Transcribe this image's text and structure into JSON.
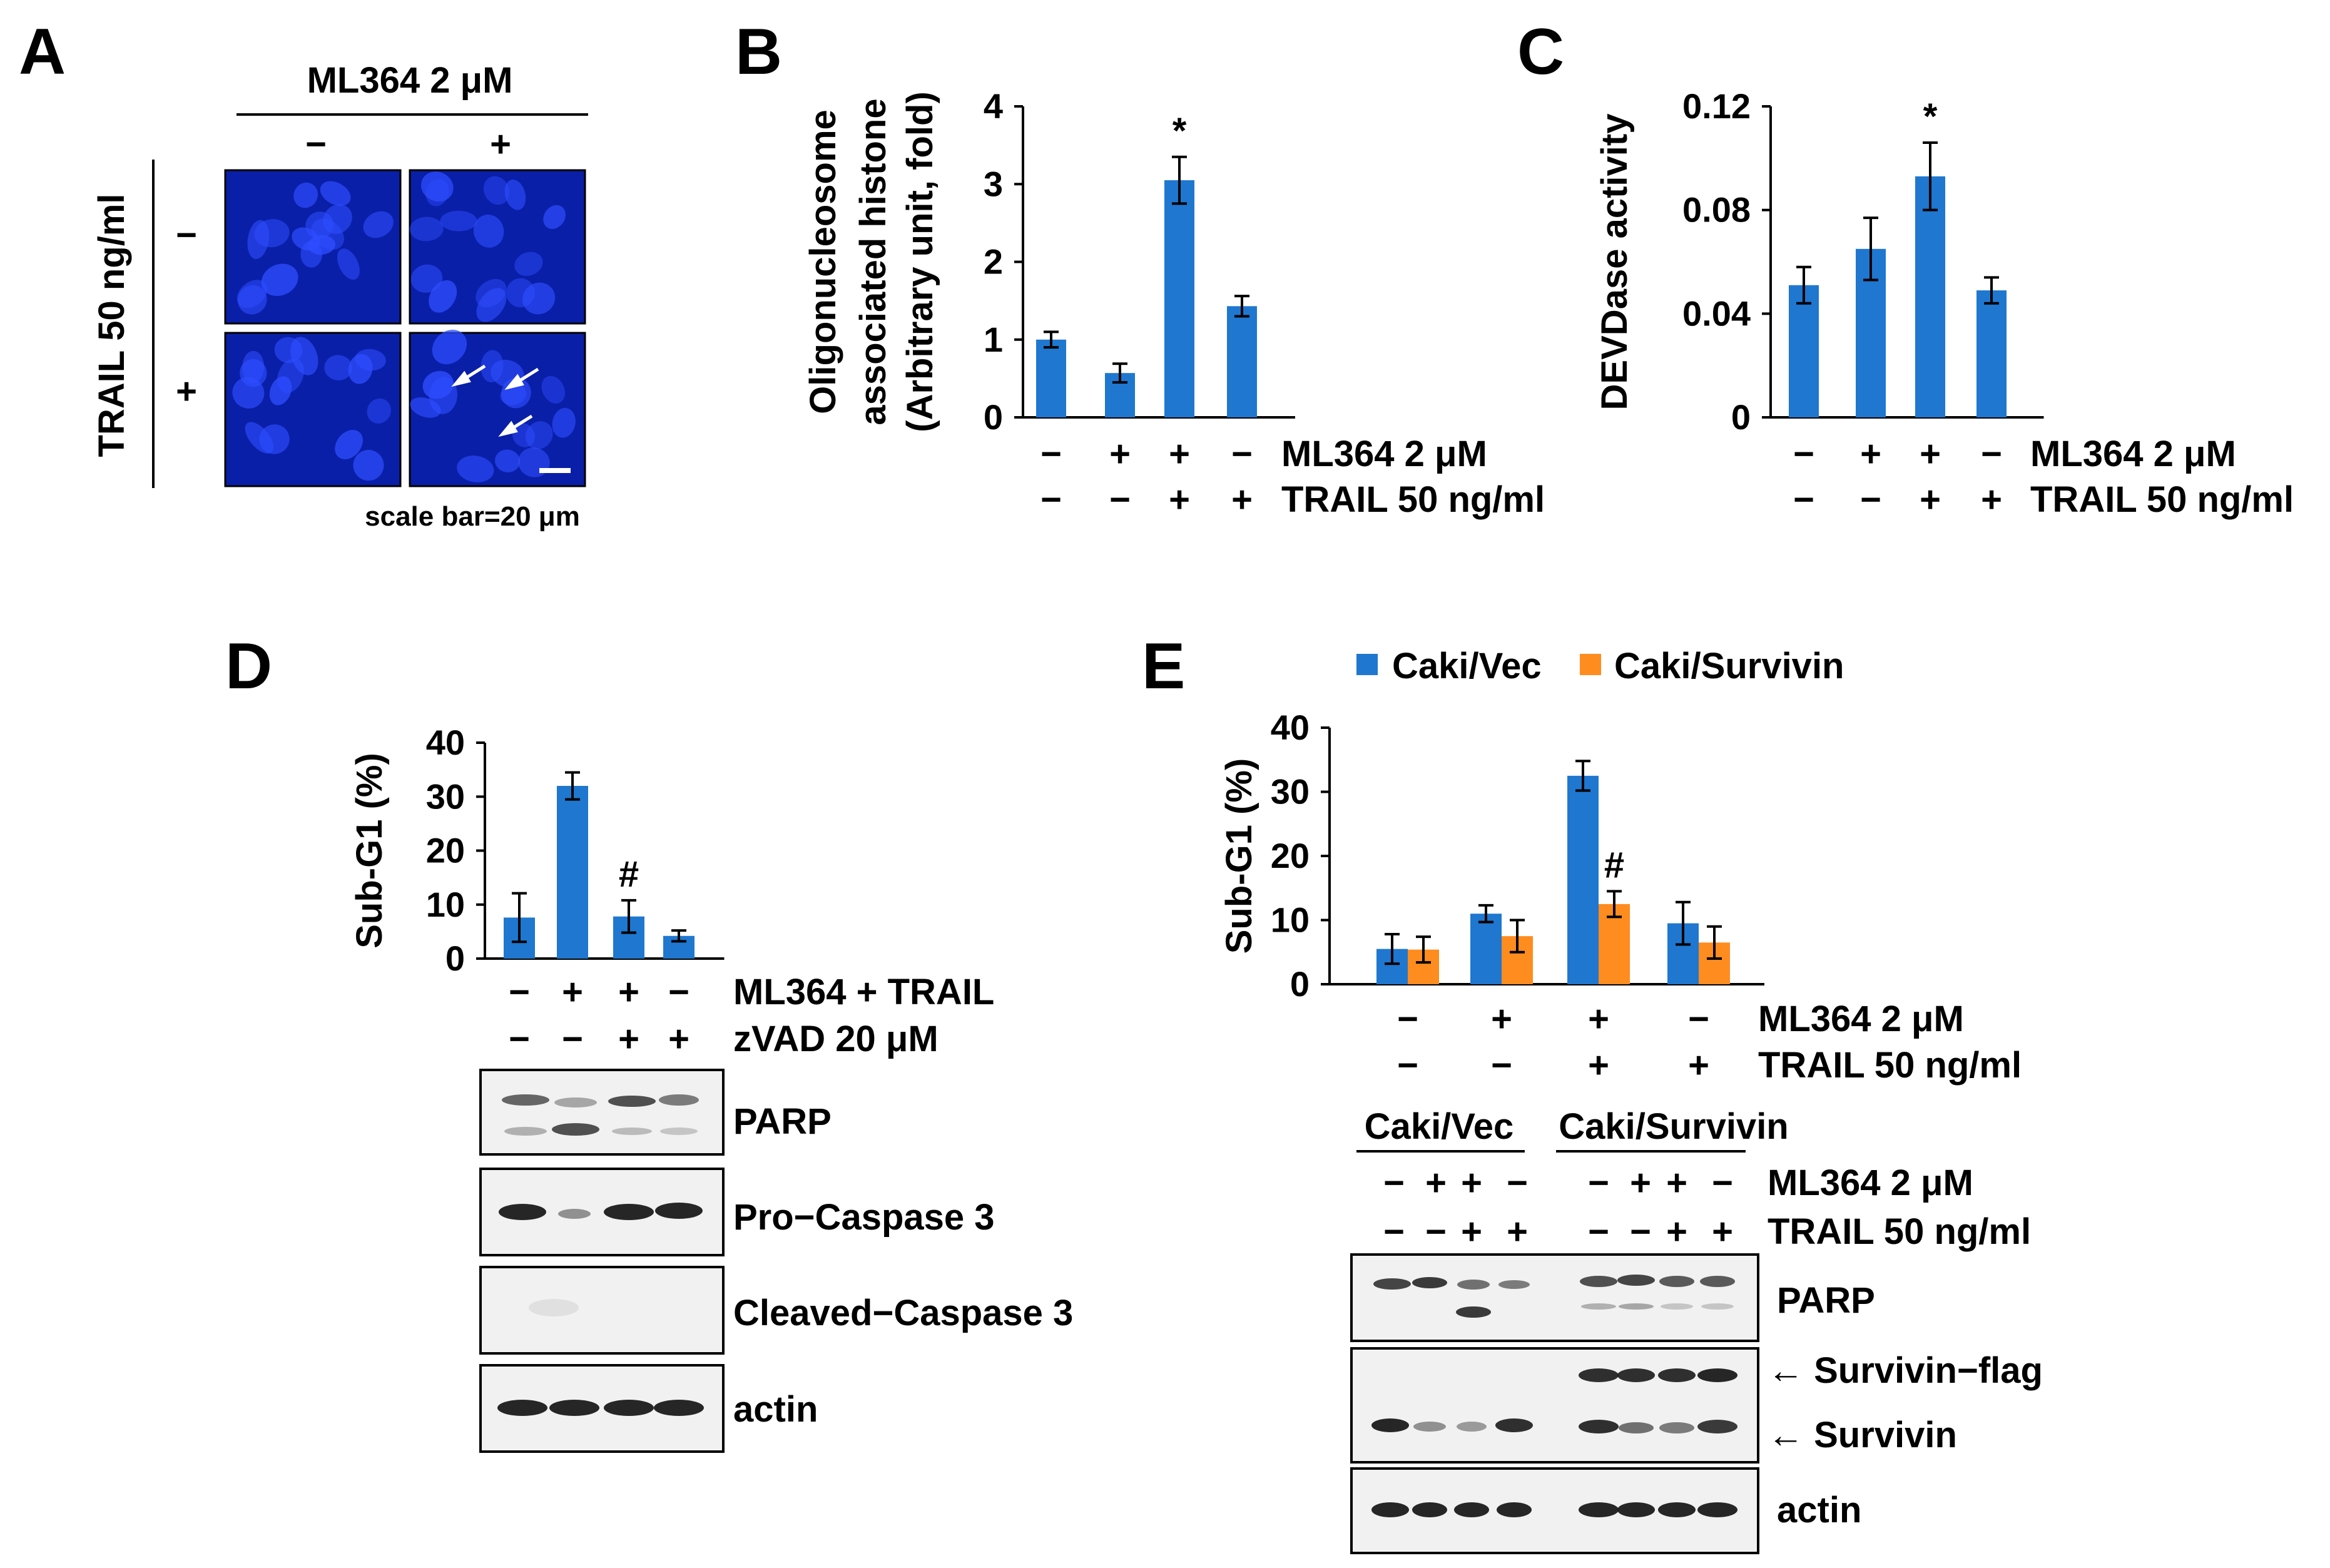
{
  "colors": {
    "bar_blue": "#1f77d0",
    "bar_orange": "#ff8c1f",
    "cell_bg": "#0a1fa8",
    "nucleus": "#2e4dff",
    "blot_bg": "#f1f1f1",
    "band": "#1a1a1a"
  },
  "panels": {
    "A": {
      "letter": "A",
      "col_title": "ML364 2 μM",
      "col_signs": [
        "−",
        "+"
      ],
      "row_title": "TRAIL  50 ng/ml",
      "row_signs": [
        "−",
        "+"
      ],
      "scale_label": "scale  bar=20  μm"
    },
    "B": {
      "letter": "B"
    },
    "C": {
      "letter": "C"
    },
    "D": {
      "letter": "D",
      "blot_labels": [
        "PARP",
        "Pro−Caspase 3",
        "Cleaved−Caspase 3",
        "actin"
      ]
    },
    "E": {
      "letter": "E",
      "group_labels": [
        "Caki/Vec",
        "Caki/Survivin"
      ],
      "blot_treatments": [
        {
          "label": "ML364 2 μM",
          "signs": [
            "−",
            "+",
            "+",
            "−",
            "−",
            "+",
            "+",
            "−"
          ]
        },
        {
          "label": "TRAIL 50 ng/ml",
          "signs": [
            "−",
            "−",
            "+",
            "+",
            "−",
            "−",
            "+",
            "+"
          ]
        }
      ],
      "blot_labels": [
        "PARP",
        "← Survivin−flag",
        "← Survivin",
        "actin"
      ]
    }
  },
  "chart_data": [
    {
      "id": "B",
      "type": "bar",
      "ylabel": [
        "Oligonucleosome",
        "associated histone",
        "(Arbitrary unit, fold)"
      ],
      "ylim": [
        0,
        4
      ],
      "yticks": [
        "0",
        "1",
        "2",
        "3",
        "4"
      ],
      "series": [
        {
          "name": "",
          "color": "#1f77d0",
          "values": [
            1.0,
            0.57,
            3.05,
            1.43
          ],
          "errors": [
            0.1,
            0.12,
            0.3,
            0.13
          ]
        }
      ],
      "annotations": [
        {
          "index": 2,
          "series": 0,
          "text": "*"
        }
      ],
      "treatments": [
        {
          "label": "ML364 2 μM",
          "signs": [
            "−",
            "+",
            "+",
            "−"
          ]
        },
        {
          "label": "TRAIL 50 ng/ml",
          "signs": [
            "−",
            "−",
            "+",
            "+"
          ]
        }
      ]
    },
    {
      "id": "C",
      "type": "bar",
      "ylabel": [
        "DEVDase activity"
      ],
      "ylim": [
        0,
        0.12
      ],
      "yticks": [
        "0",
        "0.04",
        "0.08",
        "0.12"
      ],
      "series": [
        {
          "name": "",
          "color": "#1f77d0",
          "values": [
            0.051,
            0.065,
            0.093,
            0.049
          ],
          "errors": [
            0.007,
            0.012,
            0.013,
            0.005
          ]
        }
      ],
      "annotations": [
        {
          "index": 2,
          "series": 0,
          "text": "*"
        }
      ],
      "treatments": [
        {
          "label": "ML364 2 μM",
          "signs": [
            "−",
            "+",
            "+",
            "−"
          ]
        },
        {
          "label": "TRAIL 50 ng/ml",
          "signs": [
            "−",
            "−",
            "+",
            "+"
          ]
        }
      ]
    },
    {
      "id": "D",
      "type": "bar",
      "ylabel": [
        "Sub-G1 (%)"
      ],
      "ylim": [
        0,
        40
      ],
      "yticks": [
        "0",
        "10",
        "20",
        "30",
        "40"
      ],
      "series": [
        {
          "name": "",
          "color": "#1f77d0",
          "values": [
            7.6,
            32.0,
            7.8,
            4.2
          ],
          "errors": [
            4.5,
            2.5,
            3.0,
            1.0
          ]
        }
      ],
      "annotations": [
        {
          "index": 2,
          "series": 0,
          "text": "#"
        }
      ],
      "treatments": [
        {
          "label": "ML364 + TRAIL",
          "signs": [
            "−",
            "+",
            "+",
            "−"
          ]
        },
        {
          "label": "zVAD 20 μM",
          "signs": [
            "−",
            "−",
            "+",
            "+"
          ]
        }
      ]
    },
    {
      "id": "E",
      "type": "bar",
      "ylabel": [
        "Sub-G1 (%)"
      ],
      "ylim": [
        0,
        40
      ],
      "yticks": [
        "0",
        "10",
        "20",
        "30",
        "40"
      ],
      "legend": "top",
      "series": [
        {
          "name": "Caki/Vec",
          "color": "#1f77d0",
          "values": [
            5.5,
            11.0,
            32.5,
            9.5
          ],
          "errors": [
            2.3,
            1.3,
            2.3,
            3.3
          ]
        },
        {
          "name": "Caki/Survivin",
          "color": "#ff8c1f",
          "values": [
            5.4,
            7.5,
            12.5,
            6.5
          ],
          "errors": [
            2.0,
            2.5,
            2.0,
            2.5
          ]
        }
      ],
      "annotations": [
        {
          "index": 2,
          "series": 1,
          "text": "#"
        }
      ],
      "treatments": [
        {
          "label": "ML364 2 μM",
          "signs": [
            "−",
            "+",
            "+",
            "−"
          ]
        },
        {
          "label": "TRAIL 50 ng/ml",
          "signs": [
            "−",
            "−",
            "+",
            "+"
          ]
        }
      ]
    }
  ]
}
